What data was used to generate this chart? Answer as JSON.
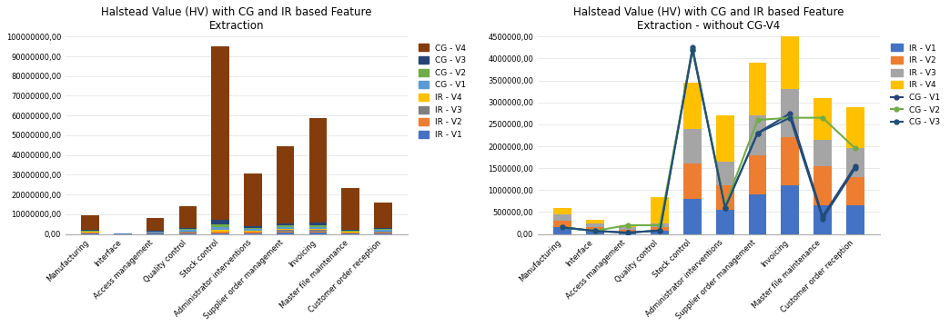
{
  "categories": [
    "Manufacturing",
    "Interface",
    "Access management",
    "Quality control",
    "Stock control",
    "Administrator interventions",
    "Supplier order management",
    "Invoicing",
    "Master file maintenance",
    "Customer order reception"
  ],
  "title_left": "Halstead Value (HV) with CG and IR based Feature\nExtraction",
  "title_right": "Halstead Value (HV) with CG and IR based Feature\nExtraction - without CG-V4",
  "bar_series_left": {
    "IR - V1": [
      300000,
      50000,
      200000,
      400000,
      500000,
      500000,
      700000,
      700000,
      300000,
      400000
    ],
    "IR - V2": [
      300000,
      50000,
      200000,
      400000,
      500000,
      500000,
      700000,
      700000,
      300000,
      400000
    ],
    "IR - V3": [
      200000,
      30000,
      150000,
      300000,
      400000,
      400000,
      500000,
      500000,
      200000,
      300000
    ],
    "IR - V4": [
      200000,
      30000,
      150000,
      300000,
      600000,
      400000,
      500000,
      500000,
      200000,
      300000
    ],
    "CG - V1": [
      400000,
      50000,
      300000,
      500000,
      1500000,
      600000,
      900000,
      1000000,
      400000,
      500000
    ],
    "CG - V2": [
      400000,
      50000,
      300000,
      500000,
      1500000,
      600000,
      900000,
      1000000,
      400000,
      500000
    ],
    "CG - V3": [
      400000,
      50000,
      300000,
      600000,
      2000000,
      800000,
      1200000,
      1200000,
      500000,
      600000
    ],
    "CG - V4": [
      7500000,
      100000,
      6500000,
      11000000,
      88000000,
      27000000,
      39000000,
      53000000,
      21000000,
      13000000
    ]
  },
  "bar_colors_left": {
    "IR - V1": "#4472C4",
    "IR - V2": "#ED7D31",
    "IR - V3": "#808080",
    "IR - V4": "#FFC000",
    "CG - V1": "#5B9BD5",
    "CG - V2": "#70AD47",
    "CG - V3": "#264478",
    "CG - V4": "#843C0C"
  },
  "bar_series_right_ir": {
    "IR - V1": [
      150000,
      80000,
      50000,
      80000,
      800000,
      550000,
      900000,
      1100000,
      650000,
      650000
    ],
    "IR - V2": [
      150000,
      80000,
      50000,
      80000,
      800000,
      550000,
      900000,
      1100000,
      900000,
      650000
    ],
    "IR - V3": [
      150000,
      80000,
      50000,
      80000,
      800000,
      550000,
      900000,
      1100000,
      600000,
      650000
    ],
    "IR - V4": [
      150000,
      80000,
      50000,
      600000,
      1050000,
      1050000,
      1200000,
      1200000,
      950000,
      950000
    ]
  },
  "line_series_right": {
    "CG - V1": [
      150000,
      70000,
      30000,
      80000,
      4250000,
      600000,
      2300000,
      2750000,
      400000,
      1550000
    ],
    "CG - V2": [
      150000,
      70000,
      200000,
      200000,
      4200000,
      650000,
      2600000,
      2650000,
      2650000,
      1950000
    ],
    "CG - V3": [
      150000,
      70000,
      30000,
      80000,
      4200000,
      600000,
      2300000,
      2650000,
      350000,
      1500000
    ]
  },
  "bar_colors_right": {
    "IR - V1": "#4472C4",
    "IR - V2": "#ED7D31",
    "IR - V3": "#A5A5A5",
    "IR - V4": "#FFC000"
  },
  "line_colors_right": {
    "CG - V1": "#264478",
    "CG - V2": "#70AD47",
    "CG - V3": "#1F4E79"
  },
  "ylim_left": [
    0,
    100000000
  ],
  "ylim_right": [
    0,
    4500000
  ],
  "yticks_left": [
    0,
    10000000,
    20000000,
    30000000,
    40000000,
    50000000,
    60000000,
    70000000,
    80000000,
    90000000,
    100000000
  ],
  "yticks_right": [
    0,
    500000,
    1000000,
    1500000,
    2000000,
    2500000,
    3000000,
    3500000,
    4000000,
    4500000
  ],
  "legend_left_order": [
    "CG - V4",
    "CG - V3",
    "CG - V2",
    "CG - V1",
    "IR - V4",
    "IR - V3",
    "IR - V2",
    "IR - V1"
  ],
  "legend_right_order": [
    "IR - V1",
    "IR - V2",
    "IR - V3",
    "IR - V4",
    "CG - V1",
    "CG - V2",
    "CG - V3"
  ],
  "background_color": "#FFFFFF",
  "grid_color": "#E0E0E0"
}
